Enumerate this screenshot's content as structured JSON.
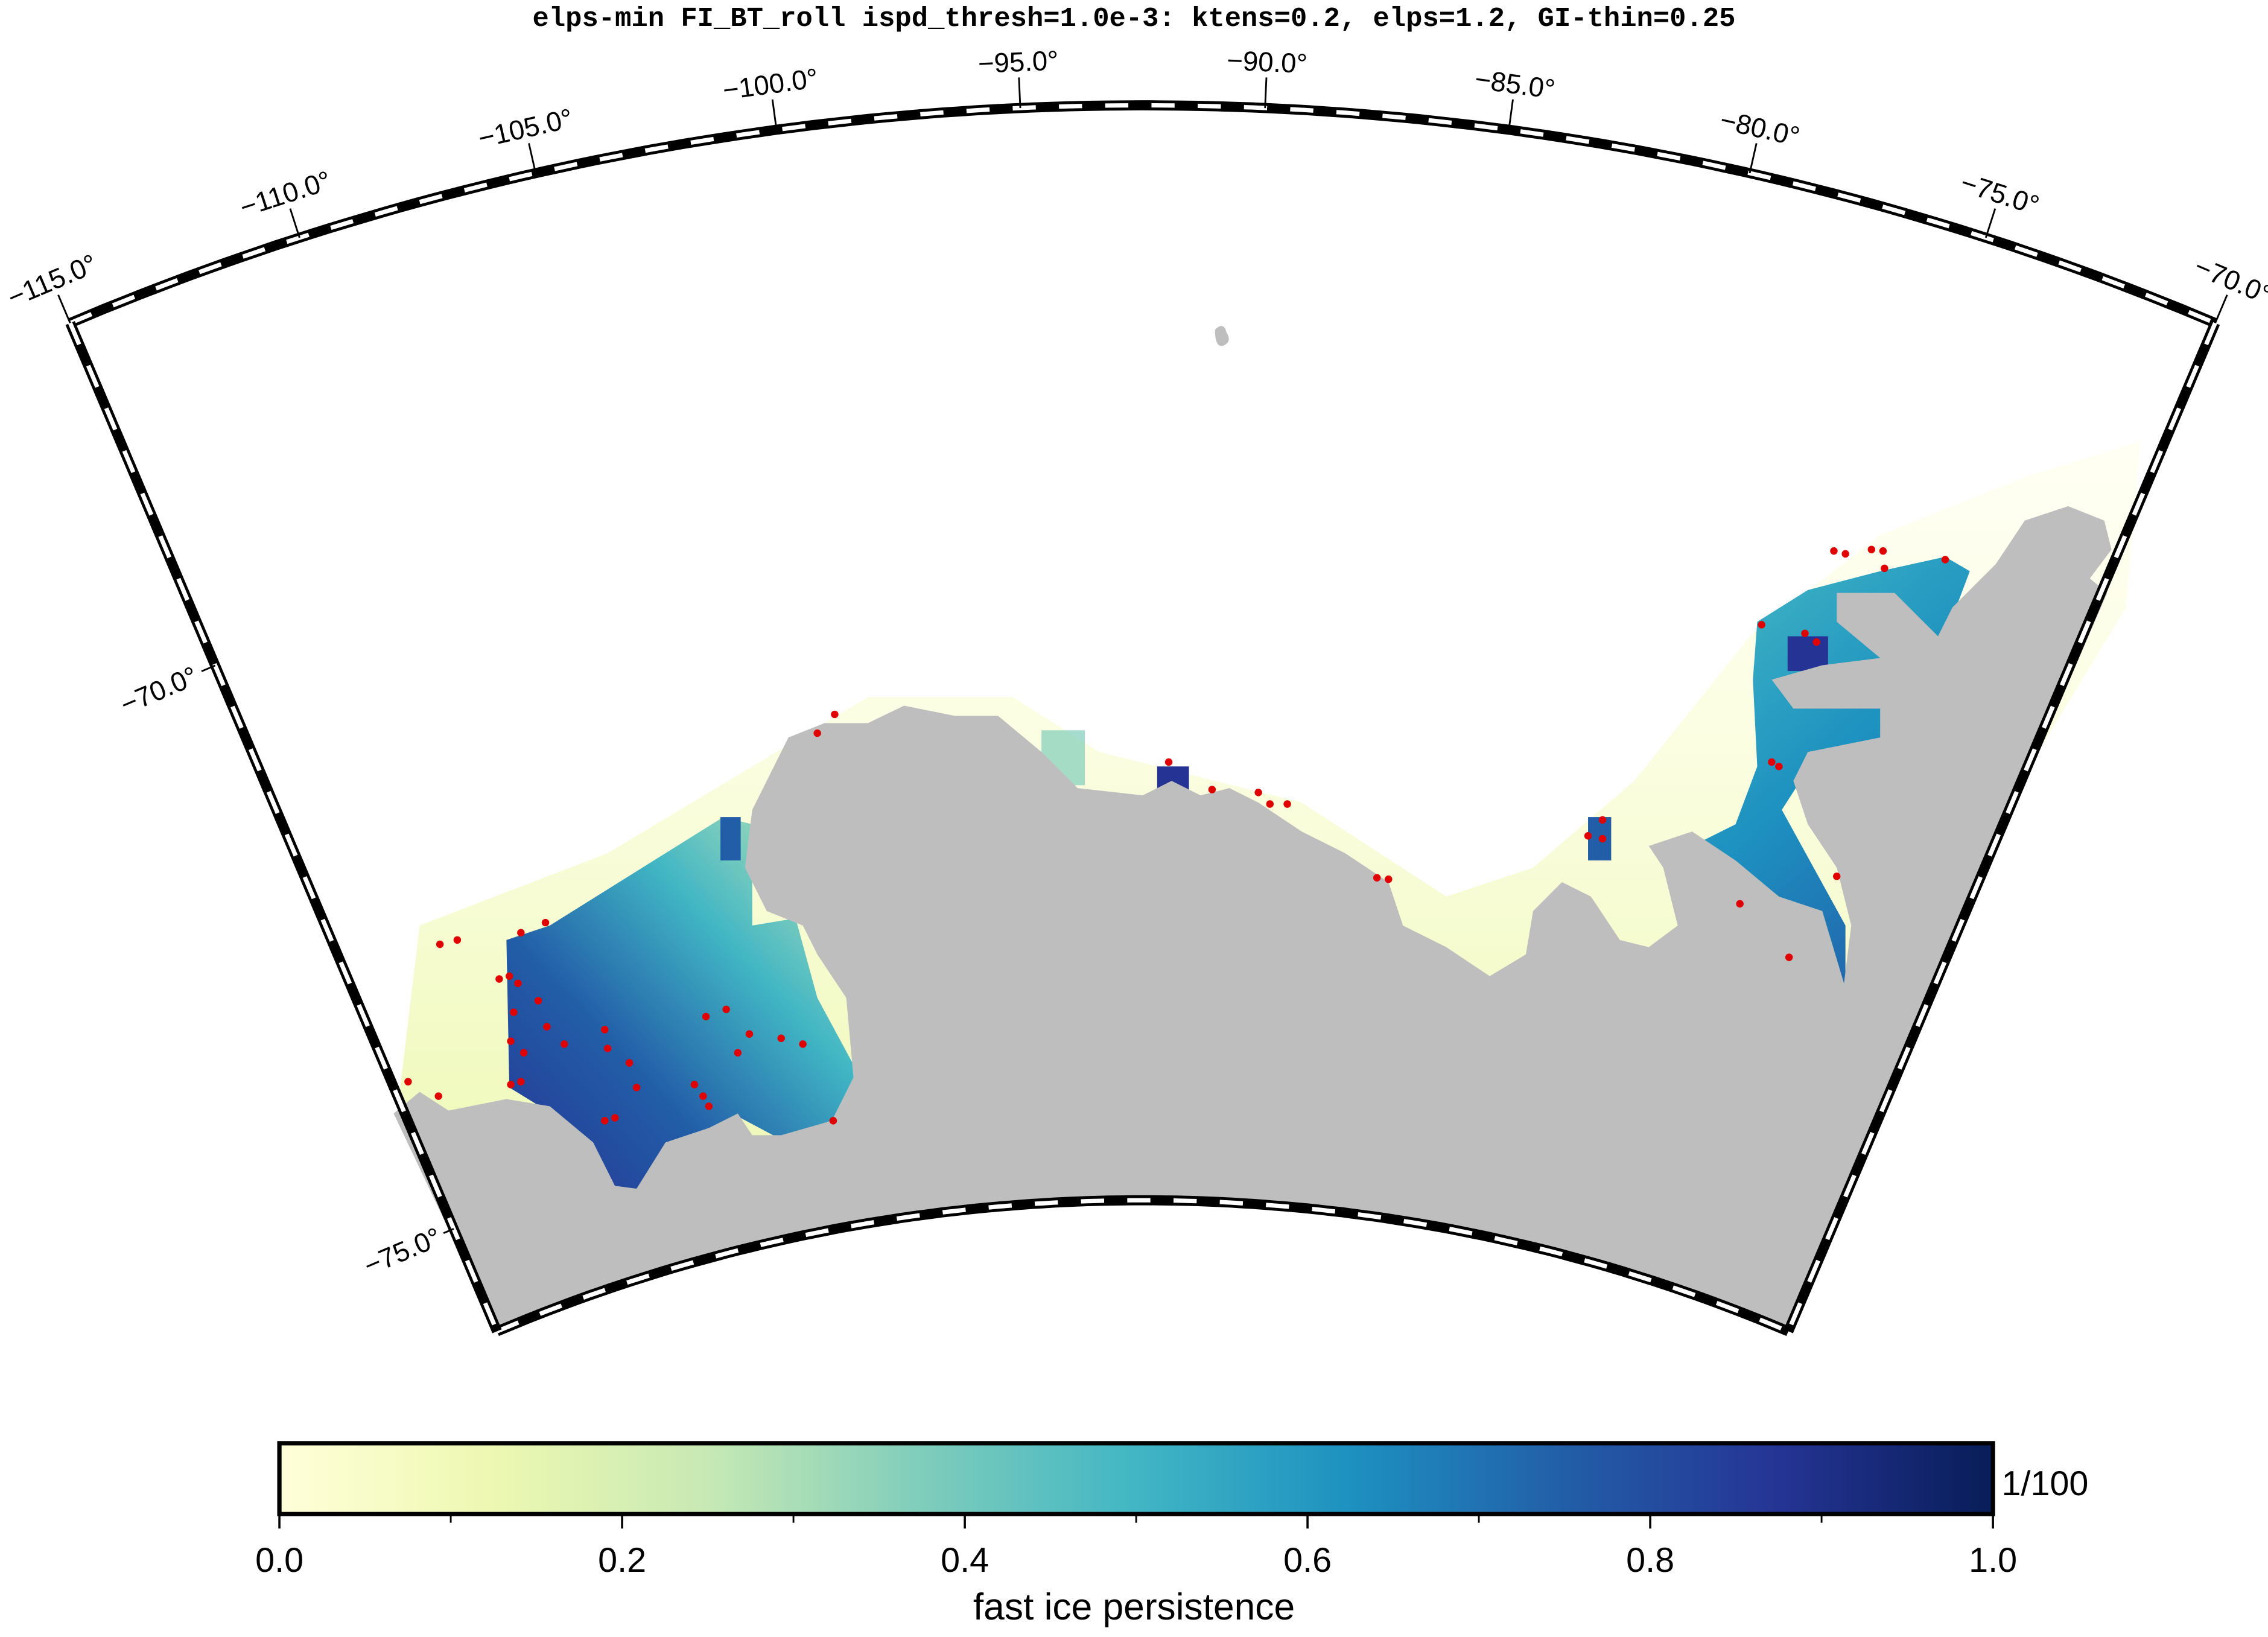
{
  "title": "elps-min FI_BT_roll ispd_thresh=1.0e-3: ktens=0.2, elps=1.2, GI-thin=0.25",
  "map": {
    "lon_ticks": [
      {
        "value": -115,
        "label": "−115.0°"
      },
      {
        "value": -110,
        "label": "−110.0°"
      },
      {
        "value": -105,
        "label": "−105.0°"
      },
      {
        "value": -100,
        "label": "−100.0°"
      },
      {
        "value": -95,
        "label": "−95.0°"
      },
      {
        "value": -90,
        "label": "−90.0°"
      },
      {
        "value": -85,
        "label": "−85.0°"
      },
      {
        "value": -80,
        "label": "−80.0°"
      },
      {
        "value": -75,
        "label": "−75.0°"
      },
      {
        "value": -70,
        "label": "−70.0°"
      }
    ],
    "lat_ticks": [
      {
        "value": -70,
        "label": "−70.0°"
      },
      {
        "value": -75,
        "label": "−75.0°"
      }
    ],
    "land_color": "#bebebe"
  },
  "colorbar": {
    "label": "fast ice persistence",
    "unit": "1/100",
    "lim": [
      0,
      1
    ],
    "ticks": [
      {
        "value": 0,
        "label": "0.0"
      },
      {
        "value": 0.2,
        "label": "0.2"
      },
      {
        "value": 0.4,
        "label": "0.4"
      },
      {
        "value": 0.6,
        "label": "0.6"
      },
      {
        "value": 0.8,
        "label": "0.8"
      },
      {
        "value": 1,
        "label": "1.0"
      }
    ],
    "minor_ticks": [
      0.1,
      0.3,
      0.5,
      0.7,
      0.9
    ],
    "colors": [
      "#ffffd9",
      "#edf8b1",
      "#c7e9b4",
      "#7fcdbb",
      "#41b6c4",
      "#1d91c0",
      "#225ea8",
      "#253494",
      "#081d58"
    ]
  }
}
